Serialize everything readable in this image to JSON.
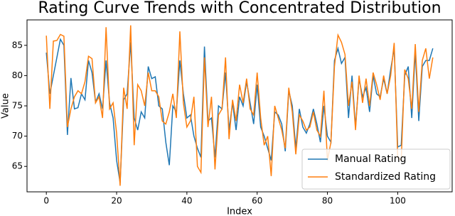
{
  "chart_data": {
    "type": "line",
    "title": "Rating Curve Trends with Concentrated Distribution",
    "x_label": "Index",
    "y_label": "Value",
    "x": [
      0,
      1,
      2,
      3,
      4,
      5,
      6,
      7,
      8,
      9,
      10,
      11,
      12,
      13,
      14,
      15,
      16,
      17,
      18,
      19,
      20,
      21,
      22,
      23,
      24,
      25,
      26,
      27,
      28,
      29,
      30,
      31,
      32,
      33,
      34,
      35,
      36,
      37,
      38,
      39,
      40,
      41,
      42,
      43,
      44,
      45,
      46,
      47,
      48,
      49,
      50,
      51,
      52,
      53,
      54,
      55,
      56,
      57,
      58,
      59,
      60,
      61,
      62,
      63,
      64,
      65,
      66,
      67,
      68,
      69,
      70,
      71,
      72,
      73,
      74,
      75,
      76,
      77,
      78,
      79,
      80,
      81,
      82,
      83,
      84,
      85,
      86,
      87,
      88,
      89,
      90,
      91,
      92,
      93,
      94,
      95,
      96,
      97,
      98,
      99,
      100,
      101,
      102,
      103,
      104,
      105,
      106,
      107,
      108,
      109,
      110
    ],
    "series": [
      {
        "name": "Manual Rating",
        "color": "#1f77b4",
        "values": [
          83.8,
          77,
          80,
          83,
          86,
          85,
          70.2,
          79.6,
          74.5,
          74.7,
          77,
          76,
          82.5,
          80.5,
          75.6,
          77,
          74.5,
          82.5,
          75.5,
          73,
          66,
          62.3,
          76,
          77,
          85.5,
          73,
          71,
          74,
          73,
          81.5,
          79.5,
          79.8,
          75,
          74.5,
          69,
          65.2,
          75,
          74,
          82.5,
          77,
          73,
          73.5,
          70,
          68,
          66.5,
          84.8,
          72.5,
          73,
          66.5,
          75,
          74.5,
          80.5,
          71,
          75.5,
          71,
          76.5,
          75,
          79,
          75.5,
          72,
          78.5,
          71.5,
          70,
          68,
          66,
          74,
          73.5,
          72,
          67.5,
          77.5,
          75,
          68,
          74.5,
          71.5,
          70.5,
          72,
          74.5,
          72,
          69,
          75,
          70,
          69,
          82.5,
          84.5,
          82,
          83,
          73,
          80,
          71.5,
          79.5,
          76.5,
          78,
          74,
          80,
          77,
          76.5,
          79.5,
          77,
          81,
          84.5,
          68.2,
          68.5,
          80,
          81.5,
          73,
          84,
          72.5,
          81.5,
          82.5,
          82.5,
          84.5
        ]
      },
      {
        "name": "Standardized Rating",
        "color": "#ff7f0e",
        "values": [
          86.6,
          74.5,
          85.7,
          85.8,
          86.8,
          86.5,
          71.5,
          74.5,
          76.5,
          77.5,
          77,
          79,
          83.2,
          82.8,
          75.5,
          76.5,
          73,
          88,
          74.5,
          75.5,
          70.5,
          61.8,
          78,
          74.5,
          88.3,
          68.5,
          78.5,
          77.5,
          75,
          80.5,
          77.5,
          77.5,
          76.5,
          72.5,
          72,
          74,
          77,
          73,
          87.3,
          75.5,
          71.5,
          72.5,
          76.5,
          65,
          64,
          83,
          71.5,
          76.5,
          64.5,
          73.5,
          74.5,
          83,
          69.5,
          76,
          72.5,
          78.5,
          75.5,
          79.5,
          74.5,
          73.5,
          80.5,
          73,
          68.5,
          70,
          63.4,
          75,
          73,
          71,
          68,
          78,
          74,
          67,
          73.5,
          72.5,
          71,
          71.5,
          74,
          71,
          70,
          77.5,
          66,
          69,
          81.5,
          86.7,
          85.5,
          83.5,
          75,
          79,
          71,
          80,
          75.5,
          79.5,
          75,
          80.5,
          78.5,
          76,
          80,
          77,
          80,
          85.4,
          66.5,
          66,
          81,
          79.5,
          74.5,
          85.2,
          74,
          82.5,
          84.5,
          79.5,
          83
        ]
      }
    ],
    "xlim": [
      -5.5,
      115.5
    ],
    "ylim": [
      60.8,
      89.2
    ],
    "xticks": [
      0,
      20,
      40,
      60,
      80,
      100
    ],
    "yticks": [
      65,
      70,
      75,
      80,
      85
    ],
    "legend": "lower right"
  }
}
